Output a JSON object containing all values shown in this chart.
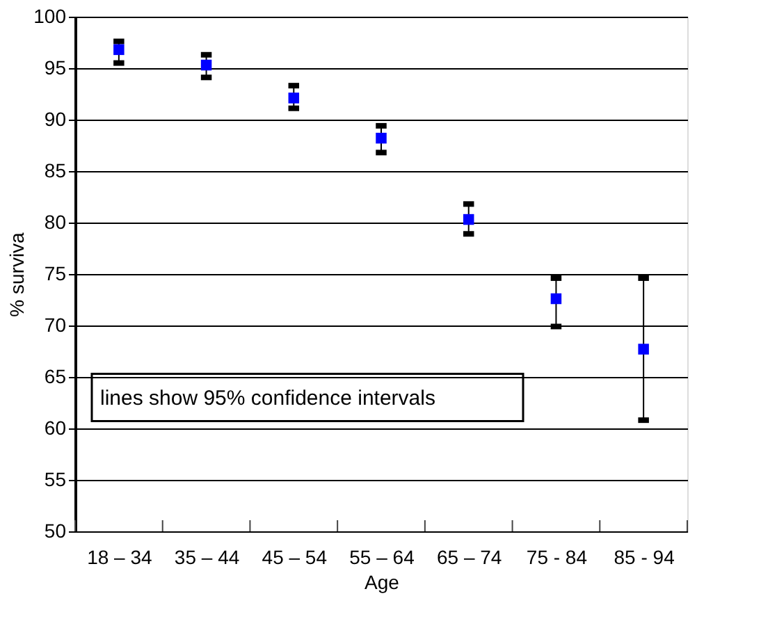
{
  "chart_data": {
    "type": "scatter",
    "xlabel": "Age",
    "ylabel": "% surviva",
    "categories": [
      "18 – 34",
      "35 – 44",
      "45 – 54",
      "55 – 64",
      "65 – 74",
      "75 - 84",
      "85 - 94"
    ],
    "series": [
      {
        "color": "#0000ff",
        "values": [
          96.8,
          95.3,
          92.1,
          88.2,
          80.3,
          72.6,
          67.7
        ],
        "errors": [
          [
            95.5,
            97.6
          ],
          [
            94.1,
            96.3
          ],
          [
            91.1,
            93.3
          ],
          [
            86.8,
            89.4
          ],
          [
            78.9,
            81.8
          ],
          [
            69.9,
            74.6
          ],
          [
            60.8,
            74.6
          ]
        ]
      }
    ],
    "ylim": [
      50,
      100
    ],
    "yticks": [
      50,
      55,
      60,
      65,
      70,
      75,
      80,
      85,
      90,
      95,
      100
    ],
    "grid": "y",
    "marker": "square",
    "legend": false,
    "annotations": [
      "lines show 95% confidence intervals"
    ]
  }
}
